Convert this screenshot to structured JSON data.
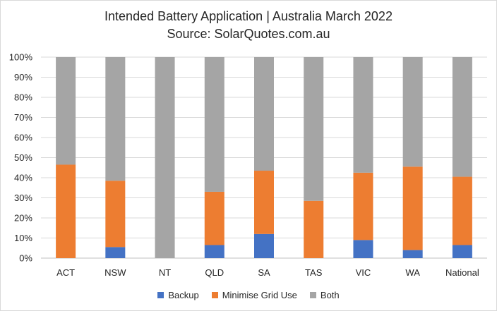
{
  "chart_data": {
    "type": "bar",
    "stacked": true,
    "title": "Intended Battery Application | Australia March 2022",
    "subtitle": "Source: SolarQuotes.com.au",
    "categories": [
      "ACT",
      "NSW",
      "NT",
      "QLD",
      "SA",
      "TAS",
      "VIC",
      "WA",
      "National"
    ],
    "series": [
      {
        "name": "Backup",
        "color": "#4472C4",
        "values": [
          0,
          5.5,
          0,
          6.5,
          12,
          0,
          9,
          4,
          6.5
        ]
      },
      {
        "name": "Minimise Grid Use",
        "color": "#ED7D31",
        "values": [
          46.5,
          33,
          0,
          26.5,
          31.5,
          28.5,
          33.5,
          41.5,
          34
        ]
      },
      {
        "name": "Both",
        "color": "#A5A5A5",
        "values": [
          53.5,
          61.5,
          100,
          67,
          56.5,
          71.5,
          57.5,
          54.5,
          59.5
        ]
      }
    ],
    "ylim": [
      0,
      100
    ],
    "yticks": [
      "0%",
      "10%",
      "20%",
      "30%",
      "40%",
      "50%",
      "60%",
      "70%",
      "80%",
      "90%",
      "100%"
    ],
    "grid": true,
    "legend_position": "bottom"
  }
}
